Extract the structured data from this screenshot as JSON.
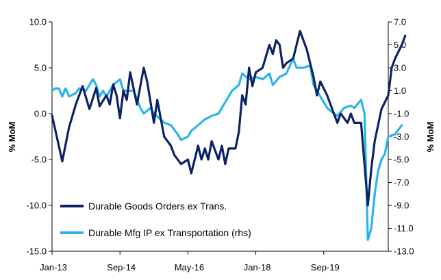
{
  "chart_data": {
    "type": "line",
    "title": "",
    "xlabel": "",
    "ylabel_left": "% MoM",
    "ylabel_right": "% MoM",
    "x_tick_labels": [
      "Jan-13",
      "Sep-14",
      "May-16",
      "Jan-18",
      "Sep-19"
    ],
    "x_tick_dates": [
      "2013-01",
      "2014-09",
      "2016-05",
      "2018-01",
      "2019-09"
    ],
    "x_range": [
      "2013-01",
      "2021-04"
    ],
    "y_left": {
      "min": -15,
      "max": 10,
      "ticks": [
        10,
        5,
        0,
        -5,
        -10,
        -15
      ],
      "tick_labels": [
        "10.0",
        "5.0",
        "0.0",
        "-5.0",
        "-10.0",
        "-15.0"
      ]
    },
    "y_right": {
      "min": -13,
      "max": 7,
      "ticks": [
        7,
        5,
        3,
        1,
        -1,
        -3,
        -5,
        -7,
        -9,
        -11,
        -13
      ],
      "tick_labels": [
        "7.0",
        "5.0",
        "3.0",
        "1.0",
        "-1.0",
        "-3.0",
        "-5.0",
        "-7.0",
        "-9.0",
        "-11.0",
        "-13.0"
      ]
    },
    "grid": false,
    "legend_position": "bottom-left",
    "series": [
      {
        "name": "Durable Goods Orders ex Trans.",
        "axis": "left",
        "color": "#0b2265",
        "points": [
          [
            "2013-01",
            -0.2
          ],
          [
            "2013-03",
            -3.5
          ],
          [
            "2013-04",
            -5.2
          ],
          [
            "2013-06",
            -1.5
          ],
          [
            "2013-08",
            1.0
          ],
          [
            "2013-10",
            3.0
          ],
          [
            "2013-12",
            0.5
          ],
          [
            "2014-02",
            2.8
          ],
          [
            "2014-03",
            0.8
          ],
          [
            "2014-05",
            2.0
          ],
          [
            "2014-06",
            1.0
          ],
          [
            "2014-07",
            3.2
          ],
          [
            "2014-08",
            2.0
          ],
          [
            "2014-09",
            -0.5
          ],
          [
            "2014-10",
            2.5
          ],
          [
            "2014-11",
            1.5
          ],
          [
            "2014-12",
            4.5
          ],
          [
            "2015-02",
            1.0
          ],
          [
            "2015-03",
            3.0
          ],
          [
            "2015-04",
            5.0
          ],
          [
            "2015-05",
            3.5
          ],
          [
            "2015-07",
            -1.0
          ],
          [
            "2015-08",
            1.5
          ],
          [
            "2015-10",
            -2.5
          ],
          [
            "2015-12",
            -3.5
          ],
          [
            "2016-01",
            -4.5
          ],
          [
            "2016-03",
            -5.5
          ],
          [
            "2016-05",
            -5.0
          ],
          [
            "2016-06",
            -6.5
          ],
          [
            "2016-08",
            -3.5
          ],
          [
            "2016-09",
            -5.0
          ],
          [
            "2016-10",
            -3.8
          ],
          [
            "2016-11",
            -5.0
          ],
          [
            "2016-12",
            -3.0
          ],
          [
            "2017-02",
            -5.0
          ],
          [
            "2017-03",
            -3.5
          ],
          [
            "2017-04",
            -5.5
          ],
          [
            "2017-05",
            -3.8
          ],
          [
            "2017-07",
            -3.8
          ],
          [
            "2017-08",
            -2.0
          ],
          [
            "2017-09",
            2.0
          ],
          [
            "2017-10",
            1.0
          ],
          [
            "2017-11",
            5.0
          ],
          [
            "2017-12",
            3.0
          ],
          [
            "2018-01",
            4.5
          ],
          [
            "2018-03",
            5.0
          ],
          [
            "2018-05",
            7.5
          ],
          [
            "2018-06",
            6.5
          ],
          [
            "2018-07",
            8.0
          ],
          [
            "2018-08",
            7.5
          ],
          [
            "2018-09",
            5.0
          ],
          [
            "2018-10",
            5.5
          ],
          [
            "2018-12",
            6.0
          ],
          [
            "2019-01",
            7.5
          ],
          [
            "2019-02",
            9.0
          ],
          [
            "2019-04",
            7.0
          ],
          [
            "2019-06",
            4.0
          ],
          [
            "2019-07",
            2.0
          ],
          [
            "2019-08",
            3.5
          ],
          [
            "2019-10",
            2.0
          ],
          [
            "2019-12",
            0.0
          ],
          [
            "2020-01",
            -1.0
          ],
          [
            "2020-02",
            0.0
          ],
          [
            "2020-04",
            -1.0
          ],
          [
            "2020-05",
            0.0
          ],
          [
            "2020-06",
            -1.0
          ],
          [
            "2020-08",
            -1.0
          ],
          [
            "2020-10",
            -10.0
          ],
          [
            "2020-11",
            -6.0
          ],
          [
            "2020-12",
            -3.0
          ],
          [
            "2021-02",
            0.5
          ],
          [
            "2021-04",
            2.0
          ],
          [
            "2021-05",
            5.0
          ],
          [
            "2021-06",
            6.0
          ],
          [
            "2021-08",
            7.5
          ],
          [
            "2021-09",
            8.5
          ]
        ]
      },
      {
        "name": "Durable Mfg IP ex Transportation (rhs)",
        "axis": "right",
        "color": "#29b5ea",
        "points": [
          [
            "2013-01",
            1.0
          ],
          [
            "2013-02",
            1.2
          ],
          [
            "2013-03",
            1.2
          ],
          [
            "2013-04",
            0.5
          ],
          [
            "2013-05",
            1.2
          ],
          [
            "2013-06",
            0.5
          ],
          [
            "2013-08",
            0.8
          ],
          [
            "2013-09",
            1.2
          ],
          [
            "2013-11",
            1.0
          ],
          [
            "2014-01",
            2.0
          ],
          [
            "2014-02",
            1.5
          ],
          [
            "2014-03",
            0.5
          ],
          [
            "2014-04",
            1.0
          ],
          [
            "2014-05",
            0.5
          ],
          [
            "2014-07",
            1.5
          ],
          [
            "2014-09",
            2.0
          ],
          [
            "2014-10",
            1.0
          ],
          [
            "2014-11",
            1.0
          ],
          [
            "2015-01",
            1.0
          ],
          [
            "2015-03",
            -0.5
          ],
          [
            "2015-04",
            -1.0
          ],
          [
            "2015-06",
            -0.5
          ],
          [
            "2015-07",
            -1.0
          ],
          [
            "2015-09",
            -1.5
          ],
          [
            "2015-10",
            -1.8
          ],
          [
            "2015-12",
            -2.0
          ],
          [
            "2016-02",
            -2.8
          ],
          [
            "2016-03",
            -3.3
          ],
          [
            "2016-05",
            -3.0
          ],
          [
            "2016-06",
            -2.5
          ],
          [
            "2016-08",
            -2.0
          ],
          [
            "2016-10",
            -1.5
          ],
          [
            "2016-12",
            -1.2
          ],
          [
            "2017-02",
            -1.0
          ],
          [
            "2017-04",
            0.0
          ],
          [
            "2017-06",
            1.0
          ],
          [
            "2017-08",
            1.5
          ],
          [
            "2017-09",
            2.5
          ],
          [
            "2017-11",
            2.0
          ],
          [
            "2018-01",
            2.2
          ],
          [
            "2018-03",
            2.0
          ],
          [
            "2018-05",
            2.5
          ],
          [
            "2018-06",
            1.5
          ],
          [
            "2018-08",
            2.2
          ],
          [
            "2018-10",
            2.5
          ],
          [
            "2018-12",
            3.8
          ],
          [
            "2019-01",
            3.0
          ],
          [
            "2019-03",
            3.0
          ],
          [
            "2019-05",
            3.2
          ],
          [
            "2019-06",
            1.5
          ],
          [
            "2019-08",
            0.5
          ],
          [
            "2019-10",
            -0.5
          ],
          [
            "2019-12",
            -1.0
          ],
          [
            "2020-01",
            -1.2
          ],
          [
            "2020-03",
            -0.5
          ],
          [
            "2020-05",
            -0.3
          ],
          [
            "2020-06",
            -0.5
          ],
          [
            "2020-08",
            0.2
          ],
          [
            "2020-09",
            -1.0
          ],
          [
            "2020-10",
            -12.0
          ],
          [
            "2020-11",
            -11.0
          ],
          [
            "2020-12",
            -8.0
          ],
          [
            "2021-01",
            -6.0
          ],
          [
            "2021-02",
            -5.0
          ],
          [
            "2021-03",
            -4.5
          ],
          [
            "2021-04",
            -3.0
          ],
          [
            "2021-06",
            -2.8
          ],
          [
            "2021-08",
            -2.0
          ]
        ]
      }
    ]
  }
}
